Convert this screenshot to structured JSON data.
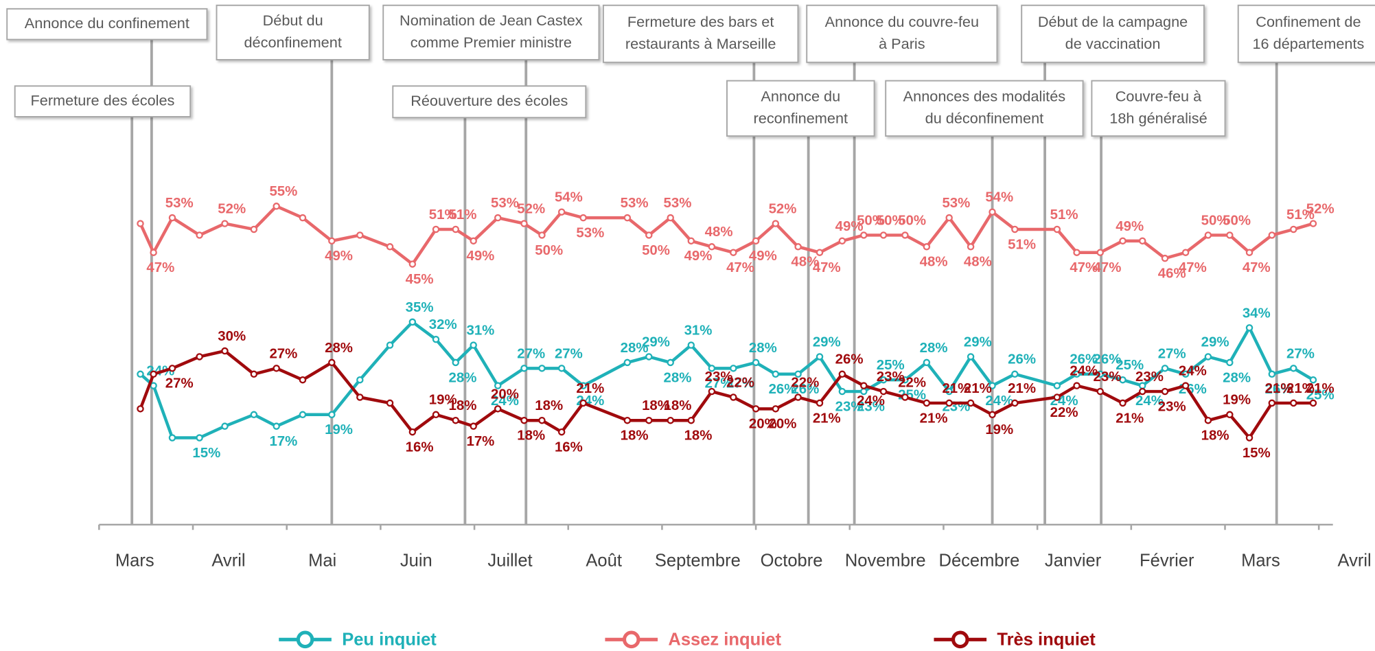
{
  "chart_data": {
    "type": "line",
    "xlim": [
      0,
      13.15
    ],
    "ylim": [
      0,
      60
    ],
    "xticks": [
      {
        "value": 0,
        "label": "Mars"
      },
      {
        "value": 1,
        "label": "Avril"
      },
      {
        "value": 2,
        "label": "Mai"
      },
      {
        "value": 3,
        "label": "Juin"
      },
      {
        "value": 4,
        "label": "Juillet"
      },
      {
        "value": 5,
        "label": "Août"
      },
      {
        "value": 6,
        "label": "Septembre"
      },
      {
        "value": 7,
        "label": "Octobre"
      },
      {
        "value": 8,
        "label": "Novembre"
      },
      {
        "value": 9,
        "label": "Décembre"
      },
      {
        "value": 10,
        "label": "Janvier"
      },
      {
        "value": 11,
        "label": "Février"
      },
      {
        "value": 12,
        "label": "Mars"
      },
      {
        "value": 13,
        "label": "Avril"
      }
    ],
    "x": [
      0.44,
      0.58,
      0.78,
      1.07,
      1.34,
      1.65,
      1.89,
      2.17,
      2.48,
      2.78,
      3.1,
      3.34,
      3.59,
      3.8,
      3.99,
      4.25,
      4.53,
      4.72,
      4.93,
      5.16,
      5.63,
      5.86,
      6.09,
      6.31,
      6.53,
      6.76,
      7.0,
      7.21,
      7.45,
      7.68,
      7.92,
      8.15,
      8.36,
      8.59,
      8.82,
      9.06,
      9.29,
      9.52,
      9.76,
      10.21,
      10.42,
      10.67,
      10.91,
      11.12,
      11.36,
      11.58,
      11.82,
      12.05,
      12.26,
      12.5,
      12.73,
      12.94
    ],
    "series": [
      {
        "name": "Peu inquiet",
        "color": "#1fb1b8",
        "values": [
          26,
          24,
          15,
          15,
          17,
          19,
          17,
          19,
          19,
          25,
          31,
          35,
          32,
          28,
          31,
          24,
          27,
          27,
          27,
          24,
          28,
          29,
          28,
          31,
          27,
          27,
          28,
          26,
          26,
          29,
          23,
          23,
          25,
          25,
          28,
          23,
          29,
          24,
          26,
          24,
          26,
          26,
          25,
          24,
          27,
          26,
          29,
          28,
          34,
          26,
          27,
          25
        ],
        "value_labels": [
          null,
          "24%",
          null,
          "15%",
          null,
          null,
          "17%",
          null,
          "19%",
          null,
          null,
          "35%",
          "32%",
          "28%",
          "31%",
          "24%",
          "27%",
          null,
          "27%",
          "24%",
          "28%",
          "29%",
          "28%",
          "31%",
          "27%",
          "27%",
          "28%",
          "26%",
          "26%",
          "29%",
          "23%",
          "23%",
          "25%",
          "25%",
          "28%",
          "23%",
          "29%",
          "24%",
          "26%",
          "24%",
          "26%",
          "26%",
          "25%",
          "24%",
          "27%",
          "26%",
          "29%",
          "28%",
          "34%",
          "26%",
          "27%",
          "25%"
        ]
      },
      {
        "name": "Assez inquiet",
        "color": "#e8686b",
        "values": [
          52,
          47,
          53,
          50,
          52,
          51,
          55,
          53,
          49,
          50,
          48,
          45,
          51,
          51,
          49,
          53,
          52,
          50,
          54,
          53,
          53,
          50,
          53,
          49,
          48,
          47,
          49,
          52,
          48,
          47,
          49,
          50,
          50,
          50,
          48,
          53,
          48,
          54,
          51,
          51,
          47,
          47,
          49,
          49,
          46,
          47,
          50,
          50,
          47,
          50,
          51,
          52
        ],
        "value_labels": [
          null,
          "47%",
          "53%",
          null,
          "52%",
          null,
          "55%",
          null,
          "49%",
          null,
          null,
          "45%",
          "51%",
          "51%",
          "49%",
          "53%",
          "52%",
          "50%",
          "54%",
          "53%",
          "53%",
          "50%",
          "53%",
          "49%",
          "48%",
          "47%",
          "49%",
          "52%",
          "48%",
          "47%",
          "49%",
          "50%",
          "50%",
          "50%",
          "48%",
          "53%",
          "48%",
          "54%",
          "51%",
          "51%",
          "47%",
          "47%",
          "49%",
          null,
          "46%",
          "47%",
          "50%",
          "50%",
          "47%",
          null,
          "51%",
          "52%"
        ]
      },
      {
        "name": "Très inquiet",
        "color": "#a00a0d",
        "values": [
          20,
          26,
          27,
          29,
          30,
          26,
          27,
          25,
          28,
          22,
          21,
          16,
          19,
          18,
          17,
          20,
          18,
          18,
          16,
          21,
          18,
          18,
          18,
          18,
          23,
          22,
          20,
          20,
          22,
          21,
          26,
          24,
          23,
          22,
          21,
          21,
          21,
          19,
          21,
          22,
          24,
          23,
          21,
          23,
          23,
          24,
          18,
          19,
          15,
          21,
          21,
          21
        ],
        "value_labels": [
          null,
          null,
          "27%",
          null,
          "30%",
          null,
          "27%",
          null,
          "28%",
          null,
          null,
          "16%",
          "19%",
          "18%",
          "17%",
          "20%",
          "18%",
          "18%",
          "16%",
          "21%",
          "18%",
          "18%",
          "18%",
          "18%",
          "23%",
          "22%",
          "20%",
          "20%",
          "22%",
          "21%",
          "26%",
          "24%",
          "23%",
          "22%",
          "21%",
          "21%",
          "21%",
          "19%",
          "21%",
          "22%",
          "24%",
          "23%",
          "21%",
          "23%",
          "23%",
          "24%",
          "18%",
          "19%",
          "15%",
          "21%",
          "21%",
          "21%"
        ]
      }
    ],
    "annotations": [
      {
        "label": [
          "Annonce du confinement"
        ],
        "x": 0.56
      },
      {
        "label": [
          "Fermeture des écoles"
        ],
        "x": 0.35
      },
      {
        "label": [
          "Début du",
          "déconfinement"
        ],
        "x": 2.48
      },
      {
        "label": [
          "Nomination de Jean Castex",
          "comme Premier ministre"
        ],
        "x": 4.55
      },
      {
        "label": [
          "Réouverture des écoles"
        ],
        "x": 3.9
      },
      {
        "label": [
          "Fermeture des bars et",
          "restaurants à Marseille"
        ],
        "x": 6.98
      },
      {
        "label": [
          "Annonce du",
          "reconfinement"
        ],
        "x": 7.56
      },
      {
        "label": [
          "Annonce du couvre-feu",
          "à Paris"
        ],
        "x": 8.05
      },
      {
        "label": [
          "Annonces des modalités",
          "du déconfinement"
        ],
        "x": 9.52
      },
      {
        "label": [
          "Début de la campagne",
          "de vaccination"
        ],
        "x": 10.08
      },
      {
        "label": [
          "Couvre-feu à",
          "18h généralisé"
        ],
        "x": 10.68
      },
      {
        "label": [
          "Confinement de",
          "16 départements"
        ],
        "x": 12.55
      }
    ]
  }
}
